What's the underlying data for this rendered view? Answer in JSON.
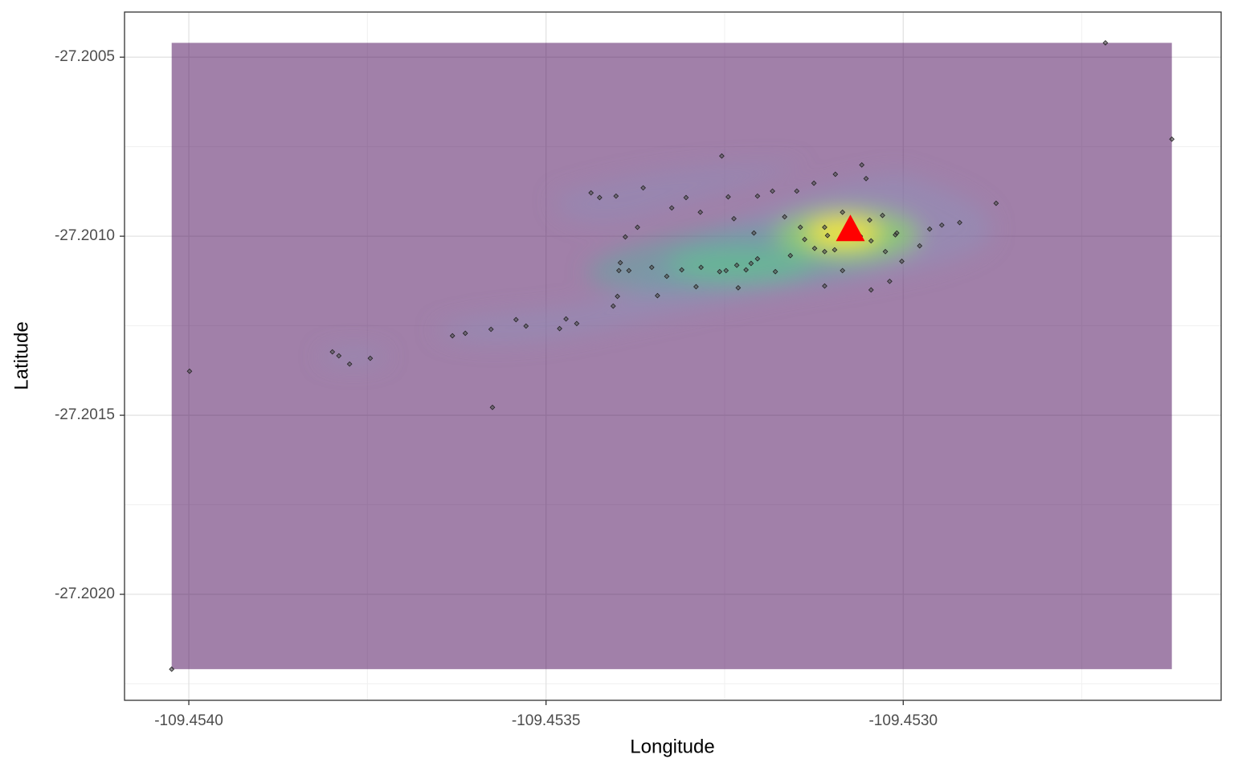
{
  "chart_data": {
    "type": "scatter",
    "x_label": "Longitude",
    "y_label": "Latitude",
    "xlim": [
      -109.45409,
      -109.452555
    ],
    "ylim": [
      -27.202296,
      -27.200374
    ],
    "xticks": [
      {
        "value": -109.454,
        "label": "-109.4540"
      },
      -109.4535,
      {
        "value": -109.453,
        "label": "-109.4530"
      }
    ],
    "yticks": [
      -27.2005,
      {
        "value": -27.201,
        "label": "-27.2010"
      },
      -27.2015,
      {
        "value": -27.202,
        "label": "-27.2020"
      }
    ],
    "grid": true,
    "density_color": "#440154",
    "point_color": "#555555",
    "x": [
      -109.454024,
      -109.453999,
      -109.453799,
      -109.45379,
      -109.453775,
      -109.453746,
      -109.453631,
      -109.453613,
      -109.453577,
      -109.453575,
      -109.453542,
      -109.453528,
      -109.453481,
      -109.453472,
      -109.453457,
      -109.453437,
      -109.453425,
      -109.453402,
      -109.453364,
      -109.453372,
      -109.453389,
      -109.453396,
      -109.453398,
      -109.453384,
      -109.453406,
      -109.4534,
      -109.453352,
      -109.453331,
      -109.453324,
      -109.453304,
      -109.453284,
      -109.453254,
      -109.453245,
      -109.453204,
      -109.453183,
      -109.453149,
      -109.453125,
      -109.453095,
      -109.453058,
      -109.453052,
      -109.453085,
      -109.453047,
      -109.453029,
      -109.45311,
      -109.453106,
      -109.45306,
      -109.453045,
      -109.453025,
      -109.453011,
      -109.453002,
      -109.452977,
      -109.452963,
      -109.452946,
      -109.452921,
      -109.45287,
      -109.453019,
      -109.453045,
      -109.453085,
      -109.45311,
      -109.45311,
      -109.453138,
      -109.453158,
      -109.453179,
      -109.453204,
      -109.45322,
      -109.453233,
      -109.453248,
      -109.453257,
      -109.453283,
      -109.45329,
      -109.45331,
      -109.453344,
      -109.453237,
      -109.453209,
      -109.453166,
      -109.453144,
      -109.453124,
      -109.453096,
      -109.452717,
      -109.452624,
      -109.453231,
      -109.453213,
      -109.453073,
      -109.453009
    ],
    "y": [
      -27.202209,
      -27.201377,
      -27.201323,
      -27.201334,
      -27.201357,
      -27.201341,
      -27.201278,
      -27.201271,
      -27.20126,
      -27.201478,
      -27.201233,
      -27.201251,
      -27.201258,
      -27.201231,
      -27.201244,
      -27.200879,
      -27.200892,
      -27.200888,
      -27.200865,
      -27.200975,
      -27.201002,
      -27.201074,
      -27.201096,
      -27.201096,
      -27.201195,
      -27.201168,
      -27.201087,
      -27.201112,
      -27.200921,
      -27.200892,
      -27.200933,
      -27.200776,
      -27.20089,
      -27.200888,
      -27.200874,
      -27.200874,
      -27.200852,
      -27.200827,
      -27.200801,
      -27.200839,
      -27.200933,
      -27.200955,
      -27.200942,
      -27.200975,
      -27.200998,
      -27.201,
      -27.201013,
      -27.201043,
      -27.200996,
      -27.20107,
      -27.201027,
      -27.20098,
      -27.200969,
      -27.200962,
      -27.200908,
      -27.201126,
      -27.20115,
      -27.201096,
      -27.201139,
      -27.201043,
      -27.201009,
      -27.201054,
      -27.201099,
      -27.201063,
      -27.201094,
      -27.201081,
      -27.201096,
      -27.201099,
      -27.201087,
      -27.201141,
      -27.201094,
      -27.201166,
      -27.200951,
      -27.200991,
      -27.200946,
      -27.200975,
      -27.201034,
      -27.201038,
      -27.20046,
      -27.200729,
      -27.201144,
      -27.201076,
      -27.200969,
      -27.200991
    ],
    "marker": {
      "x": -109.453074,
      "y": -27.20098,
      "color": "#ff0000"
    }
  }
}
